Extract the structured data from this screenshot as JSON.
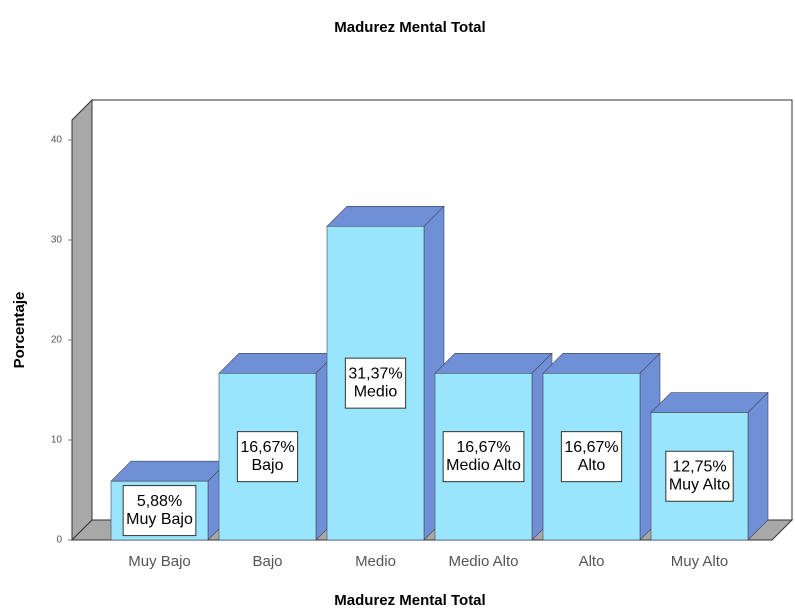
{
  "chart_data": {
    "type": "bar",
    "title": "Madurez Mental Total",
    "xlabel": "Madurez Mental Total",
    "ylabel": "Porcentaje",
    "categories": [
      "Muy Bajo",
      "Bajo",
      "Medio",
      "Medio Alto",
      "Alto",
      "Muy Alto"
    ],
    "values": [
      5.88,
      16.67,
      31.37,
      16.67,
      16.67,
      12.75
    ],
    "value_labels": [
      "5,88%",
      "16,67%",
      "31,37%",
      "16,67%",
      "16,67%",
      "12,75%"
    ],
    "color": "#99e5fd",
    "side_color": "#6f8fd6",
    "ylim": [
      0,
      42
    ],
    "yticks": [
      0,
      10,
      20,
      30,
      40
    ]
  }
}
